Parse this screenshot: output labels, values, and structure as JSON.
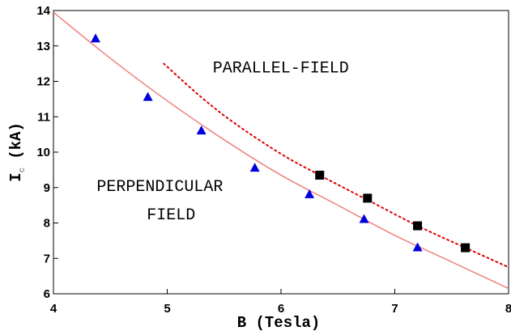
{
  "chart_data": {
    "type": "scatter",
    "xlabel": "B (Tesla)",
    "ylabel": "I",
    "ylabel_sub": "c",
    "ylabel_unit": "(kA)",
    "xlim": [
      4,
      8
    ],
    "ylim": [
      6,
      14
    ],
    "xticks": [
      "4",
      "5",
      "6",
      "7",
      "8"
    ],
    "yticks": [
      "6",
      "7",
      "8",
      "9",
      "10",
      "11",
      "12",
      "13",
      "14"
    ],
    "grid": false,
    "annotations": [
      {
        "text": "PARALLEL-FIELD",
        "x": 5.4,
        "y": 12.25
      },
      {
        "text": "PERPENDICULAR",
        "x": 4.38,
        "y": 8.9
      },
      {
        "text": "FIELD",
        "x": 4.82,
        "y": 8.1
      }
    ],
    "series": [
      {
        "kind": "markers",
        "marker": "triangle",
        "color": "#0000dd",
        "x": [
          4.37,
          4.83,
          5.3,
          5.77,
          6.25,
          6.73,
          7.2
        ],
        "y": [
          13.2,
          11.55,
          10.6,
          9.55,
          8.8,
          8.1,
          7.3
        ]
      },
      {
        "kind": "markers",
        "marker": "square",
        "color": "#000000",
        "x": [
          6.34,
          6.76,
          7.2,
          7.62
        ],
        "y": [
          9.35,
          8.7,
          7.92,
          7.3
        ]
      },
      {
        "kind": "line",
        "style": "solid",
        "color": "#f08080",
        "x": [
          4.0,
          4.5,
          5.0,
          5.5,
          6.0,
          6.5,
          7.0,
          7.5,
          8.0
        ],
        "y": [
          13.95,
          12.65,
          11.45,
          10.35,
          9.35,
          8.5,
          7.65,
          6.9,
          6.15
        ]
      },
      {
        "kind": "line",
        "style": "dotted",
        "color": "#dd0000",
        "x": [
          4.97,
          5.3,
          5.6,
          6.0,
          6.34,
          6.76,
          7.2,
          7.62,
          8.0
        ],
        "y": [
          12.5,
          11.55,
          10.8,
          9.95,
          9.35,
          8.65,
          7.92,
          7.3,
          6.75
        ]
      }
    ]
  }
}
